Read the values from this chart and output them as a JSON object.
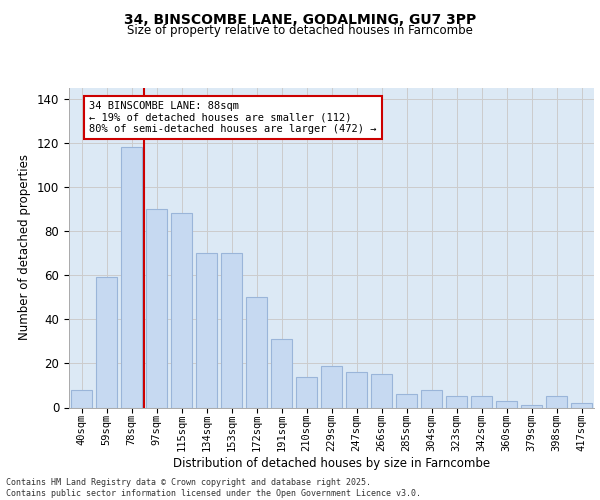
{
  "title1": "34, BINSCOMBE LANE, GODALMING, GU7 3PP",
  "title2": "Size of property relative to detached houses in Farncombe",
  "xlabel": "Distribution of detached houses by size in Farncombe",
  "ylabel": "Number of detached properties",
  "categories": [
    "40sqm",
    "59sqm",
    "78sqm",
    "97sqm",
    "115sqm",
    "134sqm",
    "153sqm",
    "172sqm",
    "191sqm",
    "210sqm",
    "229sqm",
    "247sqm",
    "266sqm",
    "285sqm",
    "304sqm",
    "323sqm",
    "342sqm",
    "360sqm",
    "379sqm",
    "398sqm",
    "417sqm"
  ],
  "values": [
    8,
    59,
    118,
    90,
    88,
    70,
    70,
    50,
    31,
    14,
    19,
    16,
    15,
    6,
    8,
    5,
    5,
    3,
    1,
    5,
    2
  ],
  "bar_color": "#c6d9f1",
  "bar_edge_color": "#9ab5d9",
  "vline_x": 2.5,
  "vline_color": "#cc0000",
  "annotation_text": "34 BINSCOMBE LANE: 88sqm\n← 19% of detached houses are smaller (112)\n80% of semi-detached houses are larger (472) →",
  "annotation_box_color": "#ffffff",
  "annotation_box_edge": "#cc0000",
  "ylim": [
    0,
    145
  ],
  "yticks": [
    0,
    20,
    40,
    60,
    80,
    100,
    120,
    140
  ],
  "grid_color": "#cccccc",
  "background_color": "#dce9f5",
  "footer1": "Contains HM Land Registry data © Crown copyright and database right 2025.",
  "footer2": "Contains public sector information licensed under the Open Government Licence v3.0."
}
